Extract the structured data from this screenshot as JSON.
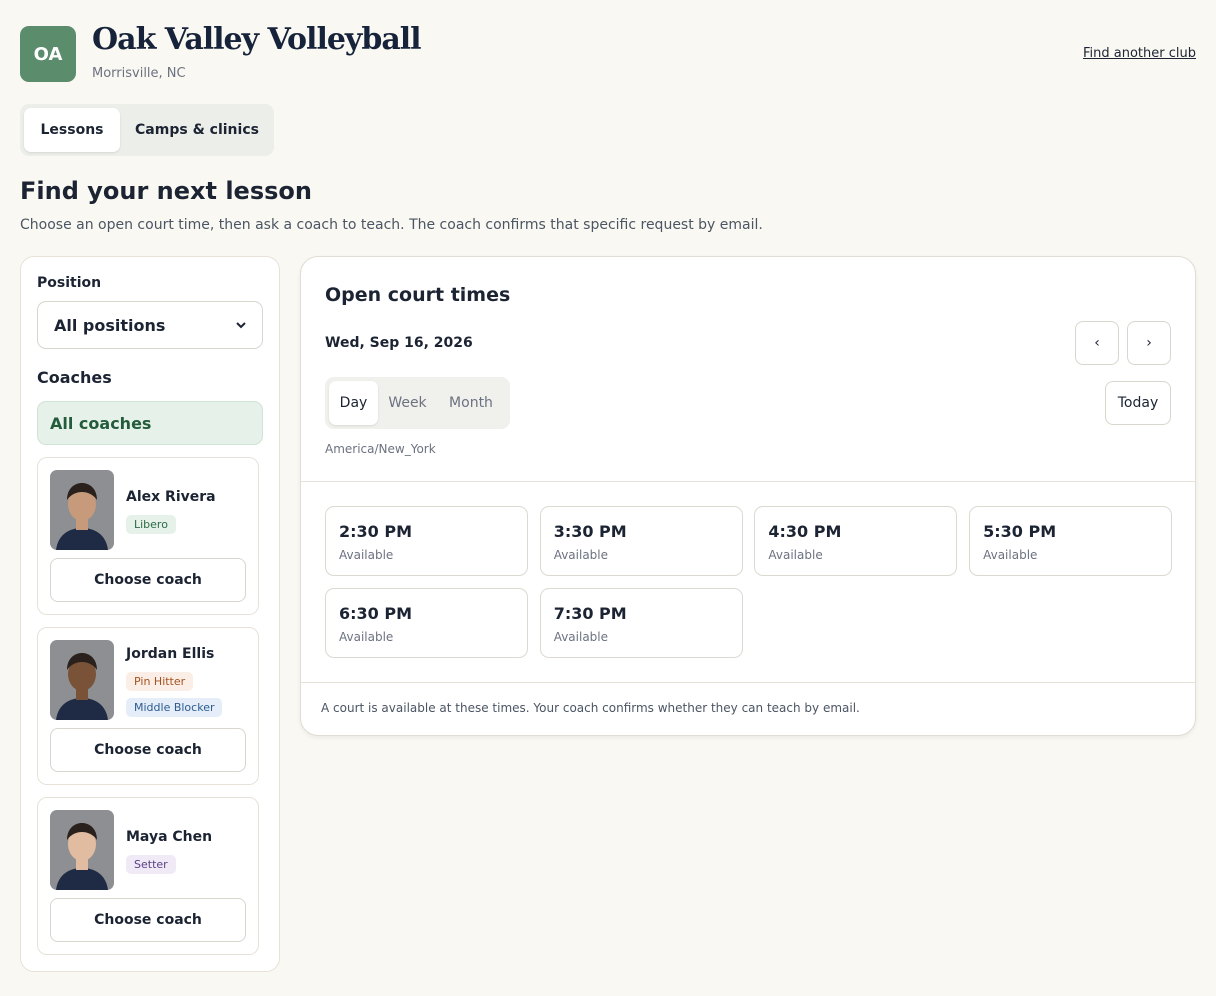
{
  "header": {
    "logo": "OA",
    "title": "Oak Valley Volleyball",
    "location": "Morrisville, NC",
    "link": "Find another club"
  },
  "tabs": [
    "Lessons",
    "Camps & clinics"
  ],
  "intro": {
    "heading": "Find your next lesson",
    "text": "Choose an open court time, then ask a coach to teach. The coach confirms that specific request by email."
  },
  "sidebar": {
    "position_label": "Position",
    "position_value": "All positions",
    "coaches_label": "Coaches",
    "all_coaches": "All coaches",
    "coaches": [
      {
        "name": "Alex Rivera",
        "tags": [
          "Libero"
        ],
        "button": "Choose coach"
      },
      {
        "name": "Jordan Ellis",
        "tags": [
          "Pin Hitter",
          "Middle Blocker"
        ],
        "button": "Choose coach"
      },
      {
        "name": "Maya Chen",
        "tags": [
          "Setter"
        ],
        "button": "Choose coach"
      }
    ]
  },
  "calendar": {
    "title": "Open court times",
    "date": "Wed, Sep 16, 2026",
    "prev": "‹",
    "next": "›",
    "views": [
      "Day",
      "Week",
      "Month"
    ],
    "today": "Today",
    "timezone": "America/New_York",
    "slots": [
      {
        "time": "2:30 PM",
        "status": "Available"
      },
      {
        "time": "3:30 PM",
        "status": "Available"
      },
      {
        "time": "4:30 PM",
        "status": "Available"
      },
      {
        "time": "5:30 PM",
        "status": "Available"
      },
      {
        "time": "6:30 PM",
        "status": "Available"
      },
      {
        "time": "7:30 PM",
        "status": "Available"
      }
    ],
    "footnote": "A court is available at these times. Your coach confirms whether they can teach by email."
  }
}
